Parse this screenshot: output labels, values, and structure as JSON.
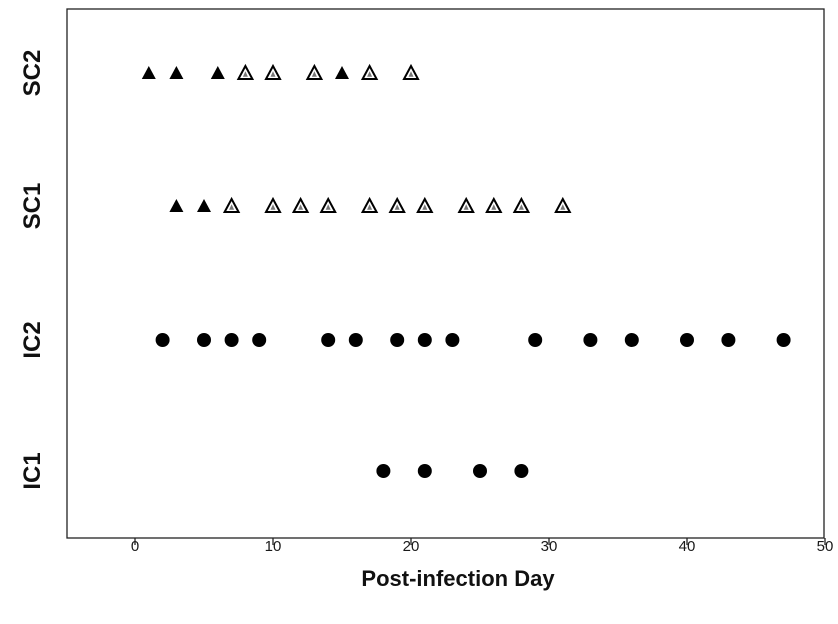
{
  "chart_data": {
    "type": "scatter",
    "title": "",
    "xlabel": "Post-infection Day",
    "ylabel": "",
    "xlim": [
      -5,
      50
    ],
    "xticks": [
      0,
      10,
      20,
      30,
      40,
      50
    ],
    "grid": false,
    "legend": "none",
    "categories": [
      "SC2",
      "SC1",
      "IC2",
      "IC1"
    ],
    "series": [
      {
        "category": "SC2",
        "marker": "triangle",
        "points": [
          {
            "x": 1,
            "filled": true
          },
          {
            "x": 3,
            "filled": true
          },
          {
            "x": 6,
            "filled": true
          },
          {
            "x": 8,
            "filled": false
          },
          {
            "x": 10,
            "filled": false
          },
          {
            "x": 13,
            "filled": false
          },
          {
            "x": 15,
            "filled": true
          },
          {
            "x": 17,
            "filled": false
          },
          {
            "x": 20,
            "filled": false
          }
        ]
      },
      {
        "category": "SC1",
        "marker": "triangle",
        "points": [
          {
            "x": 3,
            "filled": true
          },
          {
            "x": 5,
            "filled": true
          },
          {
            "x": 7,
            "filled": false
          },
          {
            "x": 10,
            "filled": false
          },
          {
            "x": 12,
            "filled": false
          },
          {
            "x": 14,
            "filled": false
          },
          {
            "x": 17,
            "filled": false
          },
          {
            "x": 19,
            "filled": false
          },
          {
            "x": 21,
            "filled": false
          },
          {
            "x": 24,
            "filled": false
          },
          {
            "x": 26,
            "filled": false
          },
          {
            "x": 28,
            "filled": false
          },
          {
            "x": 31,
            "filled": false
          }
        ]
      },
      {
        "category": "IC2",
        "marker": "circle",
        "points": [
          {
            "x": 2,
            "filled": true
          },
          {
            "x": 5,
            "filled": true
          },
          {
            "x": 7,
            "filled": true
          },
          {
            "x": 9,
            "filled": true
          },
          {
            "x": 14,
            "filled": true
          },
          {
            "x": 16,
            "filled": true
          },
          {
            "x": 19,
            "filled": true
          },
          {
            "x": 21,
            "filled": true
          },
          {
            "x": 23,
            "filled": true
          },
          {
            "x": 29,
            "filled": true
          },
          {
            "x": 33,
            "filled": true
          },
          {
            "x": 36,
            "filled": true
          },
          {
            "x": 40,
            "filled": true
          },
          {
            "x": 43,
            "filled": true
          },
          {
            "x": 47,
            "filled": true
          }
        ]
      },
      {
        "category": "IC1",
        "marker": "circle",
        "points": [
          {
            "x": 18,
            "filled": true
          },
          {
            "x": 21,
            "filled": true
          },
          {
            "x": 25,
            "filled": true
          },
          {
            "x": 28,
            "filled": true
          }
        ]
      }
    ],
    "colors": {
      "marker": "#000000",
      "axis": "#222222"
    }
  }
}
